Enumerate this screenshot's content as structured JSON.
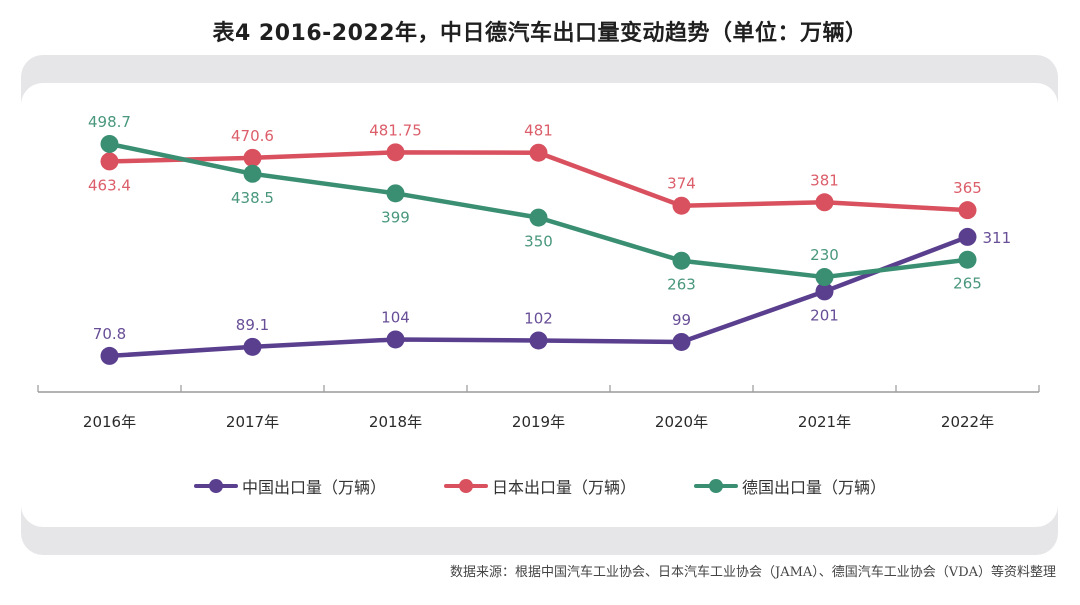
{
  "title": "表4  2016-2022年，中日德汽车出口量变动趋势（单位：万辆）",
  "source": "数据来源：根据中国汽车工业协会、日本汽车工业协会（JAMA）、德国汽车工业协会（VDA）等资料整理",
  "colors": {
    "china": "#5b3f8f",
    "japan": "#d9515e",
    "germany": "#3a8f72",
    "axis": "#9a9a9a",
    "panel_back": "#e6e6e8"
  },
  "chart_data": {
    "type": "line",
    "title": "表4  2016-2022年，中日德汽车出口量变动趋势（单位：万辆）",
    "xlabel": "",
    "ylabel": "",
    "categories": [
      "2016年",
      "2017年",
      "2018年",
      "2019年",
      "2020年",
      "2021年",
      "2022年"
    ],
    "ylim": [
      0,
      500
    ],
    "grid": false,
    "legend_position": "bottom",
    "series": [
      {
        "key": "china",
        "name": "中国出口量（万辆）",
        "values": [
          70.8,
          89.1,
          104,
          102,
          99,
          201,
          311
        ],
        "labels": [
          "70.8",
          "89.1",
          "104",
          "102",
          "99",
          "201",
          "311"
        ],
        "label_pos": [
          "above",
          "above",
          "above",
          "above",
          "above",
          "below",
          "right"
        ]
      },
      {
        "key": "japan",
        "name": "日本出口量（万辆）",
        "values": [
          463.4,
          470.6,
          481.75,
          481,
          374,
          381,
          365
        ],
        "labels": [
          "463.4",
          "470.6",
          "481.75",
          "481",
          "374",
          "381",
          "365"
        ],
        "label_pos": [
          "below",
          "above",
          "above",
          "above",
          "above",
          "above",
          "above"
        ]
      },
      {
        "key": "germany",
        "name": "德国出口量（万辆）",
        "values": [
          498.7,
          438.5,
          399,
          350,
          263,
          230,
          265
        ],
        "labels": [
          "498.7",
          "438.5",
          "399",
          "350",
          "263",
          "230",
          "265"
        ],
        "label_pos": [
          "above",
          "below",
          "below",
          "below",
          "below",
          "above",
          "below"
        ]
      }
    ]
  }
}
